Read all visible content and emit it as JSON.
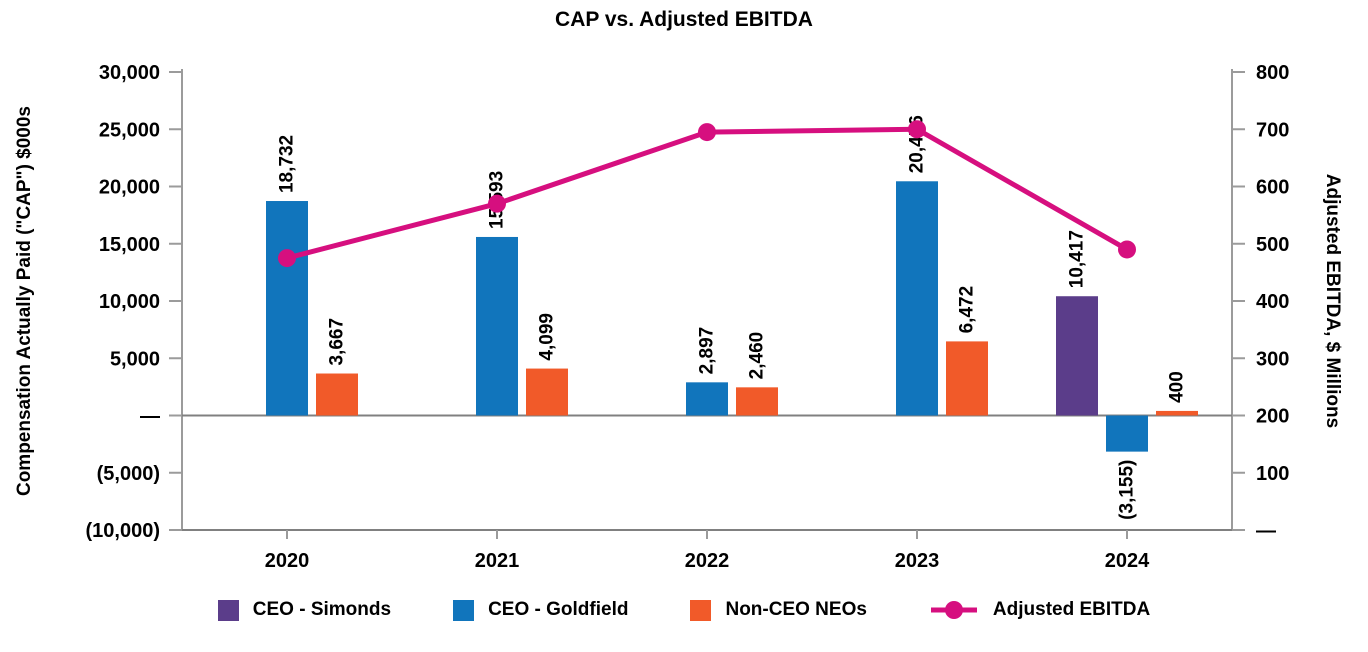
{
  "title": "CAP vs. Adjusted EBITDA",
  "chart_data": {
    "type": "bar+line",
    "title": "CAP vs. Adjusted EBITDA",
    "categories": [
      "2020",
      "2021",
      "2022",
      "2023",
      "2024"
    ],
    "series": [
      {
        "name": "CEO - Simonds",
        "type": "bar",
        "color": "#5B3D8A",
        "axis": "left",
        "values": [
          null,
          null,
          null,
          null,
          10417
        ],
        "labels": [
          null,
          null,
          null,
          null,
          "10,417"
        ]
      },
      {
        "name": "CEO - Goldfield",
        "type": "bar",
        "color": "#1175BC",
        "axis": "left",
        "values": [
          18732,
          15593,
          2897,
          20456,
          -3155
        ],
        "labels": [
          "18,732",
          "15,593",
          "2,897",
          "20,456",
          "(3,155)"
        ]
      },
      {
        "name": "Non-CEO NEOs",
        "type": "bar",
        "color": "#F15A29",
        "axis": "left",
        "values": [
          3667,
          4099,
          2460,
          6472,
          400
        ],
        "labels": [
          "3,667",
          "4,099",
          "2,460",
          "6,472",
          "400"
        ]
      },
      {
        "name": "Adjusted EBITDA",
        "type": "line",
        "color": "#D60F7F",
        "axis": "right",
        "values": [
          475,
          570,
          695,
          700,
          490
        ],
        "labels": [
          null,
          null,
          null,
          null,
          null
        ]
      }
    ],
    "left_axis": {
      "title": "Compensation Actually Paid (\"CAP\") $000s",
      "min": -10000,
      "max": 30000,
      "step": 5000,
      "tick_labels": [
        "30,000",
        "25,000",
        "20,000",
        "15,000",
        "10,000",
        "5,000",
        "—",
        "(5,000)",
        "(10,000)"
      ]
    },
    "right_axis": {
      "title": "Adjusted EBITDA, $ Millions",
      "min": 0,
      "max": 800,
      "step": 100,
      "tick_labels": [
        "800",
        "700",
        "600",
        "500",
        "400",
        "300",
        "200",
        "100",
        "—"
      ]
    },
    "legend_position": "bottom",
    "grid": false,
    "axis_color": "#9B9B9B",
    "baseline_color": "#808080",
    "label_rotation_deg": -90
  }
}
